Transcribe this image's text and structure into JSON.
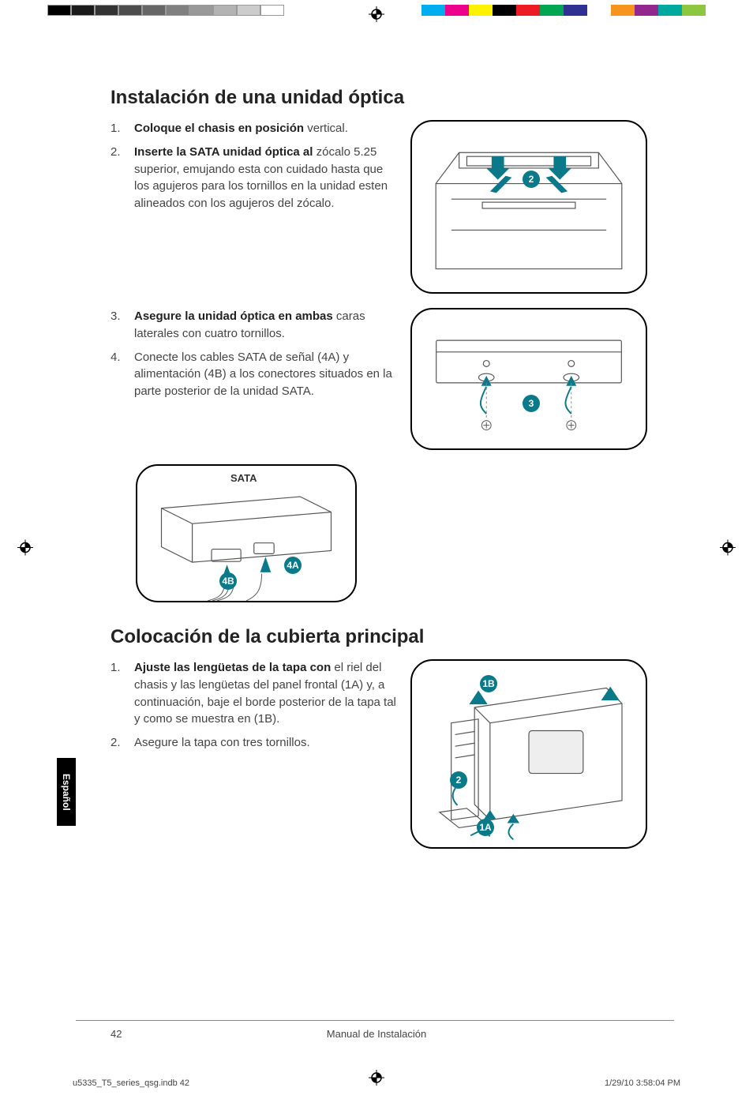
{
  "meta": {
    "indd_file": "u5335_T5_series_qsg.indb   42",
    "print_date": "1/29/10   3:58:04 PM"
  },
  "print_bars": {
    "left_grays": [
      "#000000",
      "#1a1a1a",
      "#333333",
      "#4d4d4d",
      "#666666",
      "#808080",
      "#999999",
      "#b3b3b3",
      "#cccccc",
      "#ffffff"
    ],
    "right_colors": [
      "#00aeef",
      "#ec008c",
      "#fff200",
      "#000000",
      "#ed1c24",
      "#00a651",
      "#2e3192",
      "#ffffff",
      "#f7941d",
      "#92278f",
      "#00a99d",
      "#8dc63f"
    ]
  },
  "lang_tab": "Español",
  "footer": {
    "page_number": "42",
    "title": "Manual de Instalación"
  },
  "section1": {
    "heading": "Instalación de una unidad óptica",
    "items": [
      {
        "num": "1.",
        "bold": "Coloque el chasis en posición",
        "rest": " vertical."
      },
      {
        "num": "2.",
        "bold": "Inserte la SATA unidad óptica al",
        "rest": " zócalo 5.25 superior, emujando esta con cuidado hasta que los agujeros para los tornillos en la unidad esten alineados con los agujeros del zócalo."
      },
      {
        "num": "3.",
        "bold": "Asegure la unidad óptica en ambas",
        "rest": " caras laterales con cuatro tornillos."
      },
      {
        "num": "4.",
        "bold": "",
        "rest": "Conecte los cables SATA de señal (4A) y alimentación (4B) a los conectores situados en la parte posterior de la unidad SATA."
      }
    ],
    "fig_sata_label": "SATA",
    "callouts": {
      "c2": "2",
      "c3": "3",
      "c4a": "4A",
      "c4b": "4B"
    }
  },
  "section2": {
    "heading": "Colocación de la cubierta principal",
    "items": [
      {
        "num": "1.",
        "bold": "Ajuste las lengüetas de la tapa con",
        "rest": " el riel del chasis y las lengüetas del panel frontal (1A) y, a continuación, baje el borde posterior de la tapa tal y como se muestra en (1B)."
      },
      {
        "num": "2.",
        "bold": "",
        "rest": "Asegure la tapa con tres tornillos."
      }
    ],
    "callouts": {
      "c1a": "1A",
      "c1b": "1B",
      "c2": "2"
    }
  },
  "style": {
    "callout_color": "#0a7a8a",
    "arrow_color": "#0a7a8a",
    "heading_fontsize": 24,
    "body_fontsize": 15,
    "figure_border_radius": 28
  }
}
